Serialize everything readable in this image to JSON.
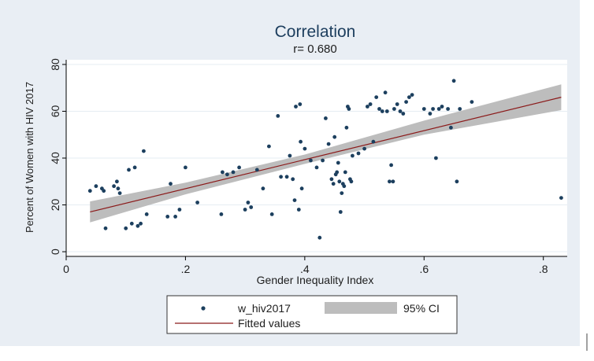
{
  "chart_data": {
    "type": "scatter",
    "title": "Correlation",
    "subtitle": "r= 0.680",
    "xlabel": "Gender Inequality Index",
    "ylabel": "Percent of Women with HIV 2017",
    "xlim": [
      0,
      0.84
    ],
    "ylim": [
      -2,
      82
    ],
    "x_ticks": [
      0,
      0.2,
      0.4,
      0.6,
      0.8
    ],
    "x_tick_labels": [
      "0",
      ".2",
      ".4",
      ".6",
      ".8"
    ],
    "y_ticks": [
      0,
      20,
      40,
      60,
      80
    ],
    "y_tick_labels": [
      "0",
      "20",
      "40",
      "60",
      "80"
    ],
    "grid": "horizontal",
    "legend_placement": "bottom",
    "colors": {
      "background": "#e9eef4",
      "plot_background": "#ffffff",
      "points": "#1c3f5e",
      "fit_line": "#8b1a1a",
      "ci_band": "#bdbdbd",
      "grid": "#e6edf3"
    },
    "series": [
      {
        "name": "w_hiv2017",
        "type": "scatter",
        "points": [
          {
            "x": 0.04,
            "y": 26
          },
          {
            "x": 0.05,
            "y": 28
          },
          {
            "x": 0.06,
            "y": 27
          },
          {
            "x": 0.063,
            "y": 26
          },
          {
            "x": 0.066,
            "y": 10
          },
          {
            "x": 0.08,
            "y": 28
          },
          {
            "x": 0.085,
            "y": 30
          },
          {
            "x": 0.087,
            "y": 27
          },
          {
            "x": 0.09,
            "y": 25
          },
          {
            "x": 0.1,
            "y": 10
          },
          {
            "x": 0.105,
            "y": 35
          },
          {
            "x": 0.11,
            "y": 12
          },
          {
            "x": 0.115,
            "y": 36
          },
          {
            "x": 0.12,
            "y": 11
          },
          {
            "x": 0.125,
            "y": 12
          },
          {
            "x": 0.13,
            "y": 43
          },
          {
            "x": 0.135,
            "y": 16
          },
          {
            "x": 0.17,
            "y": 15
          },
          {
            "x": 0.175,
            "y": 29
          },
          {
            "x": 0.183,
            "y": 15
          },
          {
            "x": 0.19,
            "y": 18
          },
          {
            "x": 0.2,
            "y": 36
          },
          {
            "x": 0.22,
            "y": 21
          },
          {
            "x": 0.26,
            "y": 16
          },
          {
            "x": 0.262,
            "y": 34
          },
          {
            "x": 0.27,
            "y": 33
          },
          {
            "x": 0.28,
            "y": 34
          },
          {
            "x": 0.29,
            "y": 36
          },
          {
            "x": 0.3,
            "y": 18
          },
          {
            "x": 0.305,
            "y": 21
          },
          {
            "x": 0.31,
            "y": 19
          },
          {
            "x": 0.32,
            "y": 35
          },
          {
            "x": 0.33,
            "y": 27
          },
          {
            "x": 0.34,
            "y": 45
          },
          {
            "x": 0.345,
            "y": 16
          },
          {
            "x": 0.355,
            "y": 58
          },
          {
            "x": 0.36,
            "y": 32
          },
          {
            "x": 0.37,
            "y": 32
          },
          {
            "x": 0.375,
            "y": 41
          },
          {
            "x": 0.38,
            "y": 31
          },
          {
            "x": 0.383,
            "y": 22
          },
          {
            "x": 0.385,
            "y": 62
          },
          {
            "x": 0.39,
            "y": 18
          },
          {
            "x": 0.392,
            "y": 63
          },
          {
            "x": 0.393,
            "y": 47
          },
          {
            "x": 0.395,
            "y": 27
          },
          {
            "x": 0.4,
            "y": 44
          },
          {
            "x": 0.41,
            "y": 39
          },
          {
            "x": 0.42,
            "y": 36
          },
          {
            "x": 0.425,
            "y": 6
          },
          {
            "x": 0.43,
            "y": 39
          },
          {
            "x": 0.435,
            "y": 57
          },
          {
            "x": 0.44,
            "y": 46
          },
          {
            "x": 0.445,
            "y": 31
          },
          {
            "x": 0.448,
            "y": 29
          },
          {
            "x": 0.45,
            "y": 49
          },
          {
            "x": 0.452,
            "y": 33
          },
          {
            "x": 0.454,
            "y": 34
          },
          {
            "x": 0.456,
            "y": 38
          },
          {
            "x": 0.458,
            "y": 30
          },
          {
            "x": 0.46,
            "y": 17
          },
          {
            "x": 0.462,
            "y": 25
          },
          {
            "x": 0.464,
            "y": 29
          },
          {
            "x": 0.466,
            "y": 28
          },
          {
            "x": 0.468,
            "y": 34
          },
          {
            "x": 0.47,
            "y": 53
          },
          {
            "x": 0.472,
            "y": 62
          },
          {
            "x": 0.474,
            "y": 61
          },
          {
            "x": 0.476,
            "y": 31
          },
          {
            "x": 0.478,
            "y": 30
          },
          {
            "x": 0.48,
            "y": 41
          },
          {
            "x": 0.49,
            "y": 42
          },
          {
            "x": 0.5,
            "y": 44
          },
          {
            "x": 0.505,
            "y": 62
          },
          {
            "x": 0.51,
            "y": 63
          },
          {
            "x": 0.515,
            "y": 47
          },
          {
            "x": 0.52,
            "y": 66
          },
          {
            "x": 0.525,
            "y": 61
          },
          {
            "x": 0.53,
            "y": 60
          },
          {
            "x": 0.535,
            "y": 68
          },
          {
            "x": 0.538,
            "y": 60
          },
          {
            "x": 0.542,
            "y": 30
          },
          {
            "x": 0.545,
            "y": 37
          },
          {
            "x": 0.548,
            "y": 30
          },
          {
            "x": 0.55,
            "y": 61
          },
          {
            "x": 0.555,
            "y": 63
          },
          {
            "x": 0.56,
            "y": 60
          },
          {
            "x": 0.565,
            "y": 59
          },
          {
            "x": 0.57,
            "y": 64
          },
          {
            "x": 0.575,
            "y": 66
          },
          {
            "x": 0.58,
            "y": 67
          },
          {
            "x": 0.6,
            "y": 61
          },
          {
            "x": 0.61,
            "y": 59
          },
          {
            "x": 0.615,
            "y": 61
          },
          {
            "x": 0.62,
            "y": 40
          },
          {
            "x": 0.625,
            "y": 61
          },
          {
            "x": 0.63,
            "y": 62
          },
          {
            "x": 0.64,
            "y": 61
          },
          {
            "x": 0.645,
            "y": 53
          },
          {
            "x": 0.65,
            "y": 73
          },
          {
            "x": 0.655,
            "y": 30
          },
          {
            "x": 0.66,
            "y": 61
          },
          {
            "x": 0.68,
            "y": 64
          },
          {
            "x": 0.83,
            "y": 23
          }
        ]
      },
      {
        "name": "Fitted values",
        "type": "line",
        "x": [
          0.04,
          0.83
        ],
        "y": [
          17,
          66
        ]
      },
      {
        "name": "95% CI",
        "type": "area",
        "x": [
          0.04,
          0.2,
          0.4,
          0.6,
          0.83
        ],
        "lower": [
          12.5,
          24.5,
          37.5,
          50,
          60.5
        ],
        "upper": [
          21.5,
          29.5,
          41.5,
          56,
          71.5
        ]
      }
    ],
    "legend": {
      "entries": [
        {
          "label": "w_hiv2017",
          "symbol": "point"
        },
        {
          "label": "95% CI",
          "symbol": "band"
        },
        {
          "label": "Fitted values",
          "symbol": "line"
        }
      ]
    }
  }
}
